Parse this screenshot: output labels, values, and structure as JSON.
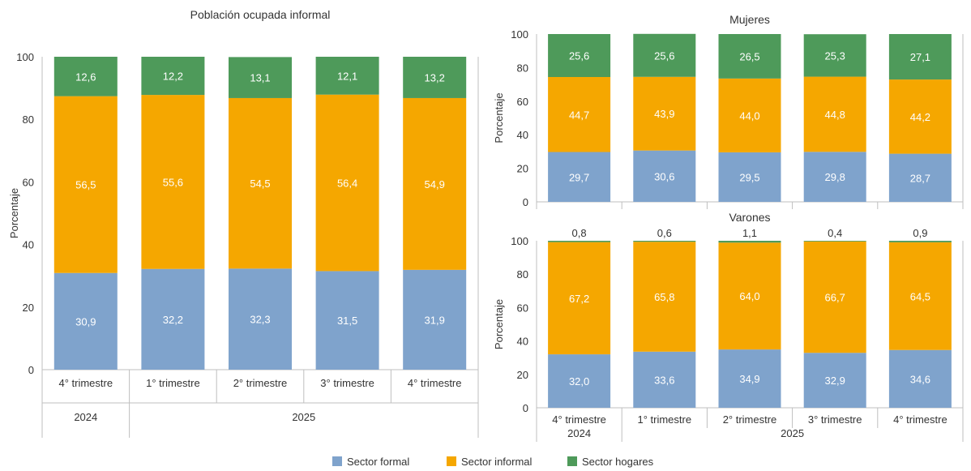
{
  "colors": {
    "formal": "#7fa3cc",
    "informal": "#f5a700",
    "hogares": "#4e9a5a",
    "axis": "#bfbfbf"
  },
  "legend": [
    {
      "key": "formal",
      "label": "Sector formal"
    },
    {
      "key": "informal",
      "label": "Sector informal"
    },
    {
      "key": "hogares",
      "label": "Sector hogares"
    }
  ],
  "chart_data": [
    {
      "type": "bar",
      "stacked": true,
      "title": "Población ocupada informal",
      "ylabel": "Porcentaje",
      "ylim": [
        0,
        100
      ],
      "yticks": [
        "0",
        "20",
        "40",
        "60",
        "80",
        "100"
      ],
      "categories": [
        "4° trimestre",
        "1° trimestre",
        "2° trimestre",
        "3° trimestre",
        "4° trimestre"
      ],
      "groups": [
        {
          "label": "2024",
          "span": 1
        },
        {
          "label": "2025",
          "span": 4
        }
      ],
      "series": [
        {
          "name": "Sector formal",
          "key": "formal",
          "values": [
            30.9,
            32.2,
            32.3,
            31.5,
            31.9
          ],
          "labels": [
            "30,9",
            "32,2",
            "32,3",
            "31,5",
            "31,9"
          ]
        },
        {
          "name": "Sector informal",
          "key": "informal",
          "values": [
            56.5,
            55.6,
            54.5,
            56.4,
            54.9
          ],
          "labels": [
            "56,5",
            "55,6",
            "54,5",
            "56,4",
            "54,9"
          ]
        },
        {
          "name": "Sector hogares",
          "key": "hogares",
          "values": [
            12.6,
            12.2,
            13.1,
            12.1,
            13.2
          ],
          "labels": [
            "12,6",
            "12,2",
            "13,1",
            "12,1",
            "13,2"
          ]
        }
      ]
    },
    {
      "type": "bar",
      "stacked": true,
      "title": "Mujeres",
      "ylabel": "Porcentaje",
      "ylim": [
        0,
        100
      ],
      "yticks": [
        "0",
        "20",
        "40",
        "60",
        "80",
        "100"
      ],
      "categories": [
        "4° trimestre",
        "1° trimestre",
        "2° trimestre",
        "3° trimestre",
        "4° trimestre"
      ],
      "series": [
        {
          "name": "Sector formal",
          "key": "formal",
          "values": [
            29.7,
            30.6,
            29.5,
            29.8,
            28.7
          ],
          "labels": [
            "29,7",
            "30,6",
            "29,5",
            "29,8",
            "28,7"
          ]
        },
        {
          "name": "Sector informal",
          "key": "informal",
          "values": [
            44.7,
            43.9,
            44.0,
            44.8,
            44.2
          ],
          "labels": [
            "44,7",
            "43,9",
            "44,0",
            "44,8",
            "44,2"
          ]
        },
        {
          "name": "Sector hogares",
          "key": "hogares",
          "values": [
            25.6,
            25.6,
            26.5,
            25.3,
            27.1
          ],
          "labels": [
            "25,6",
            "25,6",
            "26,5",
            "25,3",
            "27,1"
          ]
        }
      ]
    },
    {
      "type": "bar",
      "stacked": true,
      "title": "Varones",
      "ylabel": "Porcentaje",
      "ylim": [
        0,
        100
      ],
      "yticks": [
        "0",
        "20",
        "40",
        "60",
        "80",
        "100"
      ],
      "categories": [
        "4° trimestre",
        "1° trimestre",
        "2° trimestre",
        "3° trimestre",
        "4° trimestre"
      ],
      "groups": [
        {
          "label": "2024",
          "span": 1
        },
        {
          "label": "2025",
          "span": 4
        }
      ],
      "series": [
        {
          "name": "Sector formal",
          "key": "formal",
          "values": [
            32.0,
            33.6,
            34.9,
            32.9,
            34.6
          ],
          "labels": [
            "32,0",
            "33,6",
            "34,9",
            "32,9",
            "34,6"
          ]
        },
        {
          "name": "Sector informal",
          "key": "informal",
          "values": [
            67.2,
            65.8,
            64.0,
            66.7,
            64.5
          ],
          "labels": [
            "67,2",
            "65,8",
            "64,0",
            "66,7",
            "64,5"
          ]
        },
        {
          "name": "Sector hogares",
          "key": "hogares",
          "values": [
            0.8,
            0.6,
            1.1,
            0.4,
            0.9
          ],
          "labels": [
            "0,8",
            "0,6",
            "1,1",
            "0,4",
            "0,9"
          ]
        }
      ]
    }
  ]
}
